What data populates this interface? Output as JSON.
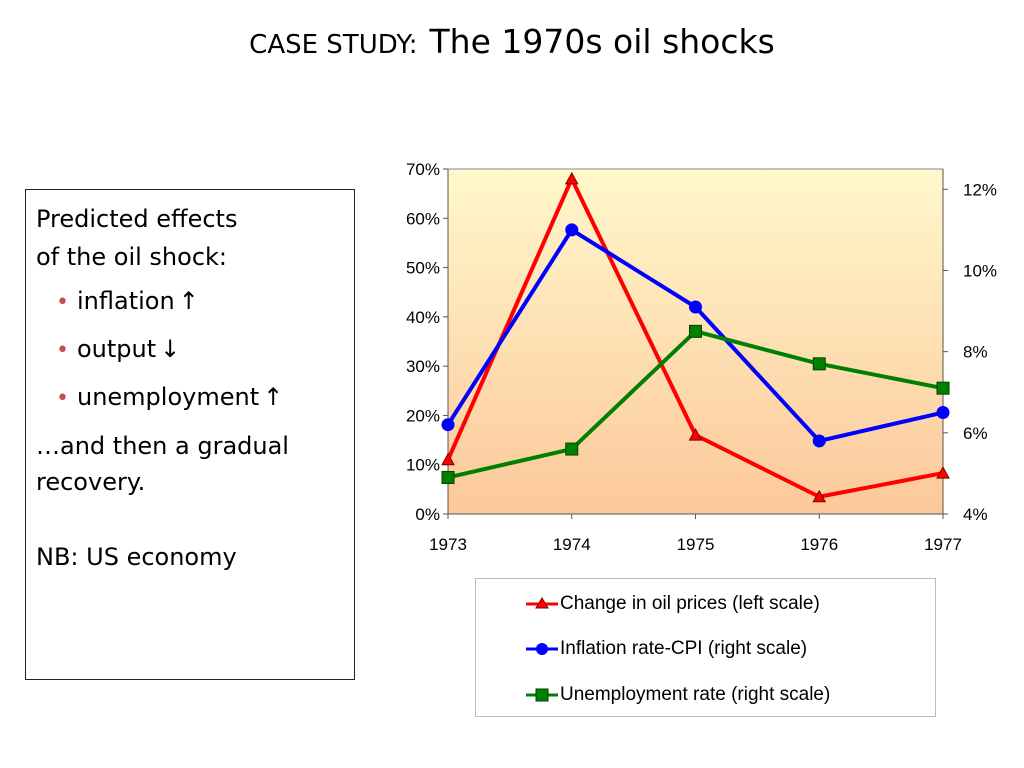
{
  "slide": {
    "title_prefix": "CASE STUDY:",
    "title_main": "The 1970s oil shocks"
  },
  "textbox": {
    "line1": "Predicted effects",
    "line2": "of the oil shock:",
    "bullets": [
      {
        "label": "inflation",
        "arrow": "↑"
      },
      {
        "label": "output",
        "arrow": "↓"
      },
      {
        "label": "unemployment",
        "arrow": "↑"
      }
    ],
    "after": "…and then a gradual recovery.",
    "note": "NB: US economy"
  },
  "chart_data": {
    "type": "line",
    "x": [
      "1973",
      "1974",
      "1975",
      "1976",
      "1977"
    ],
    "left_axis": {
      "min": 0,
      "max": 70,
      "ticks": [
        "0%",
        "10%",
        "20%",
        "30%",
        "40%",
        "50%",
        "60%",
        "70%"
      ]
    },
    "right_axis": {
      "min": 4,
      "max": 12.5,
      "ticks": [
        "4%",
        "6%",
        "8%",
        "10%",
        "12%"
      ]
    },
    "series": [
      {
        "name": "Change in oil prices (left scale)",
        "axis": "left",
        "marker": "triangle",
        "color": "#ff0000",
        "values": [
          11,
          68,
          16,
          3.5,
          8.3
        ]
      },
      {
        "name": "Inflation rate-CPI (right scale)",
        "axis": "right",
        "marker": "circle",
        "color": "#0000ff",
        "values": [
          6.2,
          11.0,
          9.1,
          5.8,
          6.5
        ]
      },
      {
        "name": "Unemployment rate (right scale)",
        "axis": "right",
        "marker": "square",
        "color": "#008000",
        "values": [
          4.9,
          5.6,
          8.5,
          7.7,
          7.1
        ]
      }
    ],
    "plot_background": "gradient light-yellow to peach",
    "legend_position": "bottom-right"
  }
}
